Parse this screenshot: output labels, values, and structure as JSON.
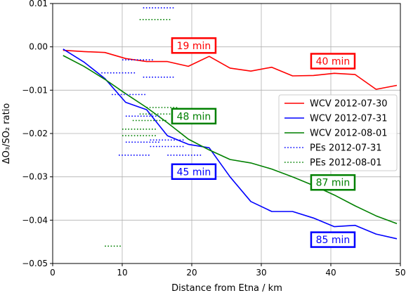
{
  "chart_data": {
    "type": "line",
    "xlabel": "Distance from Etna / km",
    "ylabel": "ΔO₃/SO₂ ratio",
    "xlim": [
      0,
      50
    ],
    "ylim": [
      -0.05,
      0.01
    ],
    "x_ticks": [
      0,
      10,
      20,
      30,
      40,
      50
    ],
    "y_ticks": [
      0.01,
      0.0,
      -0.01,
      -0.02,
      -0.03,
      -0.04,
      -0.05
    ],
    "x_tick_labels": [
      "0",
      "10",
      "20",
      "30",
      "40",
      "50"
    ],
    "y_tick_labels": [
      "0.01",
      "0.00",
      "−0.01",
      "−0.02",
      "−0.03",
      "−0.04",
      "−0.05"
    ],
    "grid": true,
    "legend_position": "center-right",
    "series": [
      {
        "name": "WCV 2012-07-30",
        "style": "solid",
        "color": "#ff0000",
        "points": [
          [
            1.5,
            -0.0008
          ],
          [
            4.5,
            -0.0011
          ],
          [
            7.5,
            -0.0013
          ],
          [
            10.5,
            -0.0027
          ],
          [
            13.5,
            -0.0034
          ],
          [
            16.5,
            -0.0034
          ],
          [
            19.5,
            -0.0045
          ],
          [
            22.5,
            -0.0022
          ],
          [
            25.5,
            -0.0049
          ],
          [
            28.5,
            -0.0056
          ],
          [
            31.5,
            -0.0047
          ],
          [
            34.5,
            -0.0067
          ],
          [
            37.5,
            -0.0066
          ],
          [
            40.5,
            -0.0061
          ],
          [
            43.5,
            -0.0064
          ],
          [
            46.5,
            -0.0098
          ],
          [
            49.5,
            -0.0089
          ]
        ]
      },
      {
        "name": "WCV 2012-07-31",
        "style": "solid",
        "color": "#0000ff",
        "points": [
          [
            1.5,
            -0.0005
          ],
          [
            4.5,
            -0.0035
          ],
          [
            7.5,
            -0.0073
          ],
          [
            10.5,
            -0.0128
          ],
          [
            13.5,
            -0.0145
          ],
          [
            16.5,
            -0.0205
          ],
          [
            19.5,
            -0.0225
          ],
          [
            22.5,
            -0.0233
          ],
          [
            25.5,
            -0.03
          ],
          [
            28.5,
            -0.0357
          ],
          [
            31.5,
            -0.038
          ],
          [
            34.5,
            -0.038
          ],
          [
            37.5,
            -0.0395
          ],
          [
            40.5,
            -0.0415
          ],
          [
            43.5,
            -0.0412
          ],
          [
            46.5,
            -0.0432
          ],
          [
            49.5,
            -0.0443
          ]
        ]
      },
      {
        "name": "WCV 2012-08-01",
        "style": "solid",
        "color": "#008000",
        "points": [
          [
            1.5,
            -0.002
          ],
          [
            4.5,
            -0.0045
          ],
          [
            7.5,
            -0.0075
          ],
          [
            10.5,
            -0.0108
          ],
          [
            13.5,
            -0.014
          ],
          [
            16.5,
            -0.0175
          ],
          [
            19.5,
            -0.0213
          ],
          [
            22.5,
            -0.0238
          ],
          [
            25.5,
            -0.026
          ],
          [
            28.5,
            -0.0268
          ],
          [
            31.5,
            -0.0282
          ],
          [
            34.5,
            -0.03
          ],
          [
            37.5,
            -0.032
          ],
          [
            40.5,
            -0.0342
          ],
          [
            43.5,
            -0.0367
          ],
          [
            46.5,
            -0.039
          ],
          [
            49.5,
            -0.0408
          ]
        ]
      },
      {
        "name": "PEs 2012-07-31",
        "style": "dotted",
        "color": "#0000ff",
        "segments": [
          [
            13.0,
            17.5,
            0.009
          ],
          [
            10.0,
            14.5,
            -0.003
          ],
          [
            7.0,
            12.0,
            -0.006
          ],
          [
            13.0,
            17.5,
            -0.007
          ],
          [
            8.5,
            13.5,
            -0.011
          ],
          [
            10.5,
            15.5,
            -0.016
          ],
          [
            10.5,
            15.5,
            -0.022
          ],
          [
            14.0,
            19.0,
            -0.0215
          ],
          [
            14.0,
            19.0,
            -0.023
          ],
          [
            9.5,
            14.0,
            -0.025
          ],
          [
            16.5,
            21.5,
            -0.025
          ]
        ]
      },
      {
        "name": "PEs 2012-08-01",
        "style": "dotted",
        "color": "#008000",
        "segments": [
          [
            12.5,
            17.0,
            0.0063
          ],
          [
            13.5,
            18.0,
            -0.014
          ],
          [
            12.5,
            17.5,
            -0.0155
          ],
          [
            11.5,
            16.5,
            -0.017
          ],
          [
            10.0,
            15.0,
            -0.019
          ],
          [
            10.0,
            15.0,
            -0.0205
          ],
          [
            7.5,
            10.0,
            -0.046
          ]
        ]
      }
    ],
    "annotations": [
      {
        "text": "19 min",
        "color": "#ff0000",
        "x": 20.3,
        "y": 0.0003
      },
      {
        "text": "40 min",
        "color": "#ff0000",
        "x": 40.3,
        "y": -0.0033
      },
      {
        "text": "48 min",
        "color": "#008000",
        "x": 20.3,
        "y": -0.016
      },
      {
        "text": "45 min",
        "color": "#0000ff",
        "x": 20.3,
        "y": -0.0288
      },
      {
        "text": "87 min",
        "color": "#008000",
        "x": 40.3,
        "y": -0.0313
      },
      {
        "text": "85 min",
        "color": "#0000ff",
        "x": 40.3,
        "y": -0.0445
      }
    ]
  }
}
